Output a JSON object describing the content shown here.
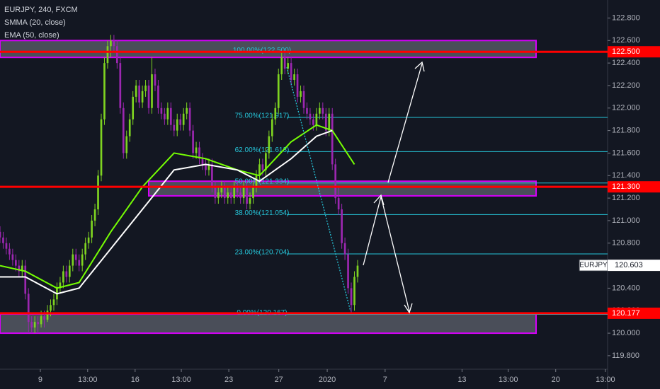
{
  "chart_data": {
    "type": "candlestick",
    "header": [
      "EURJPY, 240, FXCM",
      "SMMA (20, close)",
      "EMA (50, close)"
    ],
    "up_color": "#7ed321",
    "down_color": "#9c27b0",
    "candles": [
      [
        120.9,
        120.95,
        120.8,
        120.85
      ],
      [
        120.85,
        120.9,
        120.75,
        120.8
      ],
      [
        120.8,
        120.85,
        120.7,
        120.75
      ],
      [
        120.75,
        120.8,
        120.65,
        120.7
      ],
      [
        120.7,
        120.75,
        120.6,
        120.65
      ],
      [
        120.65,
        120.7,
        120.55,
        120.6
      ],
      [
        120.6,
        120.65,
        120.5,
        120.55
      ],
      [
        120.55,
        120.65,
        120.5,
        120.6
      ],
      [
        120.6,
        120.65,
        120.3,
        120.35
      ],
      [
        120.35,
        120.4,
        120.0,
        120.1
      ],
      [
        120.1,
        120.15,
        120.0,
        120.05
      ],
      [
        120.05,
        120.15,
        120.0,
        120.1
      ],
      [
        120.1,
        120.15,
        120.0,
        120.08
      ],
      [
        120.08,
        120.2,
        120.05,
        120.15
      ],
      [
        120.15,
        120.2,
        120.05,
        120.12
      ],
      [
        120.12,
        120.25,
        120.1,
        120.2
      ],
      [
        120.2,
        120.3,
        120.15,
        120.25
      ],
      [
        120.25,
        120.35,
        120.2,
        120.3
      ],
      [
        120.3,
        120.45,
        120.25,
        120.4
      ],
      [
        120.4,
        120.5,
        120.35,
        120.45
      ],
      [
        120.45,
        120.6,
        120.4,
        120.55
      ],
      [
        120.55,
        120.6,
        120.45,
        120.5
      ],
      [
        120.5,
        120.65,
        120.45,
        120.6
      ],
      [
        120.6,
        120.75,
        120.55,
        120.7
      ],
      [
        120.7,
        120.75,
        120.6,
        120.65
      ],
      [
        120.65,
        120.7,
        120.55,
        120.6
      ],
      [
        120.6,
        120.75,
        120.55,
        120.7
      ],
      [
        120.7,
        120.85,
        120.65,
        120.8
      ],
      [
        120.8,
        120.9,
        120.75,
        120.85
      ],
      [
        120.85,
        121.05,
        120.8,
        121.0
      ],
      [
        121.0,
        121.15,
        120.95,
        121.1
      ],
      [
        121.1,
        121.45,
        121.05,
        121.4
      ],
      [
        121.4,
        121.95,
        121.35,
        121.9
      ],
      [
        121.9,
        122.45,
        121.85,
        122.4
      ],
      [
        122.4,
        122.6,
        122.35,
        122.55
      ],
      [
        122.55,
        122.65,
        122.45,
        122.6
      ],
      [
        122.6,
        122.65,
        122.5,
        122.55
      ],
      [
        122.55,
        122.6,
        122.35,
        122.4
      ],
      [
        122.4,
        122.45,
        121.95,
        122.0
      ],
      [
        122.0,
        122.05,
        121.55,
        121.6
      ],
      [
        121.6,
        121.8,
        121.55,
        121.75
      ],
      [
        121.75,
        121.95,
        121.7,
        121.9
      ],
      [
        121.9,
        122.15,
        121.85,
        122.1
      ],
      [
        122.1,
        122.25,
        122.05,
        122.2
      ],
      [
        122.2,
        122.25,
        122.0,
        122.05
      ],
      [
        122.05,
        122.2,
        122.0,
        122.15
      ],
      [
        122.15,
        122.25,
        122.1,
        122.2
      ],
      [
        122.2,
        122.25,
        121.95,
        122.0
      ],
      [
        122.0,
        122.45,
        121.95,
        122.3
      ],
      [
        122.3,
        122.35,
        122.15,
        122.2
      ],
      [
        122.2,
        122.25,
        121.95,
        122.0
      ],
      [
        122.0,
        122.05,
        121.9,
        121.95
      ],
      [
        121.95,
        122.0,
        121.85,
        121.9
      ],
      [
        121.9,
        122.05,
        121.85,
        122.0
      ],
      [
        122.0,
        122.05,
        121.8,
        121.85
      ],
      [
        121.85,
        121.9,
        121.75,
        121.8
      ],
      [
        121.8,
        121.95,
        121.75,
        121.9
      ],
      [
        121.9,
        121.95,
        121.8,
        121.85
      ],
      [
        121.85,
        122.0,
        121.8,
        121.95
      ],
      [
        121.95,
        122.05,
        121.9,
        122.0
      ],
      [
        122.0,
        122.05,
        121.75,
        121.8
      ],
      [
        121.8,
        121.85,
        121.55,
        121.6
      ],
      [
        121.6,
        121.7,
        121.55,
        121.65
      ],
      [
        121.65,
        121.7,
        121.5,
        121.55
      ],
      [
        121.55,
        121.6,
        121.45,
        121.5
      ],
      [
        121.5,
        121.55,
        121.4,
        121.45
      ],
      [
        121.45,
        121.55,
        121.4,
        121.5
      ],
      [
        121.5,
        121.55,
        121.25,
        121.3
      ],
      [
        121.3,
        121.35,
        121.15,
        121.2
      ],
      [
        121.2,
        121.3,
        121.15,
        121.25
      ],
      [
        121.25,
        121.35,
        121.2,
        121.3
      ],
      [
        121.3,
        121.35,
        121.15,
        121.2
      ],
      [
        121.2,
        121.3,
        121.15,
        121.25
      ],
      [
        121.25,
        121.3,
        121.15,
        121.2
      ],
      [
        121.2,
        121.35,
        121.15,
        121.3
      ],
      [
        121.3,
        121.35,
        121.2,
        121.25
      ],
      [
        121.25,
        121.3,
        121.15,
        121.2
      ],
      [
        121.2,
        121.35,
        121.15,
        121.3
      ],
      [
        121.3,
        121.35,
        121.1,
        121.15
      ],
      [
        121.15,
        121.25,
        121.1,
        121.2
      ],
      [
        121.2,
        121.35,
        121.15,
        121.3
      ],
      [
        121.3,
        121.45,
        121.25,
        121.4
      ],
      [
        121.4,
        121.55,
        121.35,
        121.5
      ],
      [
        121.5,
        121.55,
        121.4,
        121.45
      ],
      [
        121.45,
        121.65,
        121.4,
        121.6
      ],
      [
        121.6,
        121.8,
        121.55,
        121.75
      ],
      [
        121.75,
        121.95,
        121.7,
        121.9
      ],
      [
        121.9,
        122.05,
        121.85,
        122.0
      ],
      [
        122.0,
        122.35,
        121.95,
        122.3
      ],
      [
        122.3,
        122.5,
        122.25,
        122.45
      ],
      [
        122.45,
        122.5,
        122.3,
        122.35
      ],
      [
        122.35,
        122.45,
        122.3,
        122.4
      ],
      [
        122.4,
        122.45,
        122.2,
        122.25
      ],
      [
        122.25,
        122.35,
        122.2,
        122.3
      ],
      [
        122.3,
        122.35,
        122.05,
        122.1
      ],
      [
        122.1,
        122.2,
        122.05,
        122.15
      ],
      [
        122.15,
        122.2,
        121.95,
        122.0
      ],
      [
        122.0,
        122.05,
        121.9,
        121.95
      ],
      [
        121.95,
        122.0,
        121.85,
        121.9
      ],
      [
        121.9,
        121.95,
        121.8,
        121.85
      ],
      [
        121.85,
        122.0,
        121.8,
        121.95
      ],
      [
        121.95,
        122.05,
        121.9,
        122.0
      ],
      [
        122.0,
        122.05,
        121.9,
        121.95
      ],
      [
        121.95,
        122.0,
        121.75,
        121.8
      ],
      [
        121.8,
        122.0,
        121.75,
        121.95
      ],
      [
        121.95,
        122.0,
        121.45,
        121.5
      ],
      [
        121.5,
        121.55,
        121.15,
        121.2
      ],
      [
        121.2,
        121.3,
        121.05,
        121.1
      ],
      [
        121.1,
        121.15,
        120.75,
        120.8
      ],
      [
        120.8,
        120.85,
        120.65,
        120.7
      ],
      [
        120.7,
        120.75,
        120.35,
        120.4
      ],
      [
        120.4,
        120.45,
        120.17,
        120.25
      ],
      [
        120.25,
        120.55,
        120.2,
        120.5
      ],
      [
        120.5,
        120.65,
        120.45,
        120.6
      ]
    ],
    "series": [
      {
        "name": "SMMA (20, close)",
        "color": "#76ff03",
        "x": [
          0,
          8,
          18,
          25,
          35,
          45,
          55,
          65,
          75,
          82,
          92,
          100,
          105,
          112
        ],
        "values": [
          120.6,
          120.55,
          120.4,
          120.45,
          120.9,
          121.3,
          121.6,
          121.55,
          121.45,
          121.4,
          121.7,
          121.85,
          121.8,
          121.5
        ]
      },
      {
        "name": "EMA (50, close)",
        "color": "#ffffff",
        "x": [
          0,
          8,
          18,
          25,
          35,
          45,
          55,
          65,
          75,
          82,
          92,
          100,
          105
        ],
        "values": [
          120.5,
          120.5,
          120.35,
          120.4,
          120.75,
          121.1,
          121.45,
          121.5,
          121.45,
          121.35,
          121.55,
          121.75,
          121.8
        ]
      }
    ],
    "zones": [
      [
        122.45,
        122.6
      ],
      [
        121.22,
        121.35
      ],
      [
        120.0,
        120.17
      ]
    ],
    "levels": [
      {
        "value": 122.5,
        "label": "122.500"
      },
      {
        "value": 121.3,
        "label": "121.300"
      },
      {
        "value": 120.177,
        "label": "120.177"
      }
    ],
    "level_color": "#ff0000",
    "fib_levels": [
      {
        "value": 122.5,
        "label": "100.00%(122.500)"
      },
      {
        "value": 121.917,
        "label": "75.00%(121.917)"
      },
      {
        "value": 121.613,
        "label": "62.00%(121.613)"
      },
      {
        "value": 121.334,
        "label": "50.00%(121.334)"
      },
      {
        "value": 121.054,
        "label": "38.00%(121.054)"
      },
      {
        "value": 120.704,
        "label": "23.00%(120.704)"
      },
      {
        "value": 120.167,
        "label": "0.00%(120.167)"
      }
    ],
    "fib_color": "#26c6da",
    "current_price": {
      "symbol": "EURJPY",
      "value": 120.603,
      "label": "120.603"
    },
    "xlim": [
      0,
      192
    ],
    "xticks": [
      {
        "value": 12.75,
        "label": "9"
      },
      {
        "value": 27.7,
        "label": "13:00"
      },
      {
        "value": 42.7,
        "label": "16"
      },
      {
        "value": 57.3,
        "label": "13:00"
      },
      {
        "value": 72.3,
        "label": "23"
      },
      {
        "value": 88.1,
        "label": "27"
      },
      {
        "value": 103.4,
        "label": "2020"
      },
      {
        "value": 121.7,
        "label": "7"
      },
      {
        "value": 146,
        "label": "13"
      },
      {
        "value": 160.6,
        "label": "13:00"
      },
      {
        "value": 175.6,
        "label": "20"
      },
      {
        "value": 191.3,
        "label": "13:00"
      }
    ],
    "ylim": [
      119.68,
      122.96
    ],
    "yticks": [
      {
        "value": 119.8,
        "label": "119.800"
      },
      {
        "value": 120.0,
        "label": "120.000"
      },
      {
        "value": 120.2,
        "label": "120.200"
      },
      {
        "value": 120.4,
        "label": "120.400"
      },
      {
        "value": 120.6,
        "label": "120.600"
      },
      {
        "value": 120.8,
        "label": "120.800"
      },
      {
        "value": 121.0,
        "label": "121.000"
      },
      {
        "value": 121.2,
        "label": "121.200"
      },
      {
        "value": 121.4,
        "label": "121.400"
      },
      {
        "value": 121.6,
        "label": "121.600"
      },
      {
        "value": 121.8,
        "label": "121.800"
      },
      {
        "value": 122.0,
        "label": "122.000"
      },
      {
        "value": 122.2,
        "label": "122.200"
      },
      {
        "value": 122.4,
        "label": "122.400"
      },
      {
        "value": 122.6,
        "label": "122.600"
      },
      {
        "value": 122.8,
        "label": "122.800"
      }
    ]
  }
}
